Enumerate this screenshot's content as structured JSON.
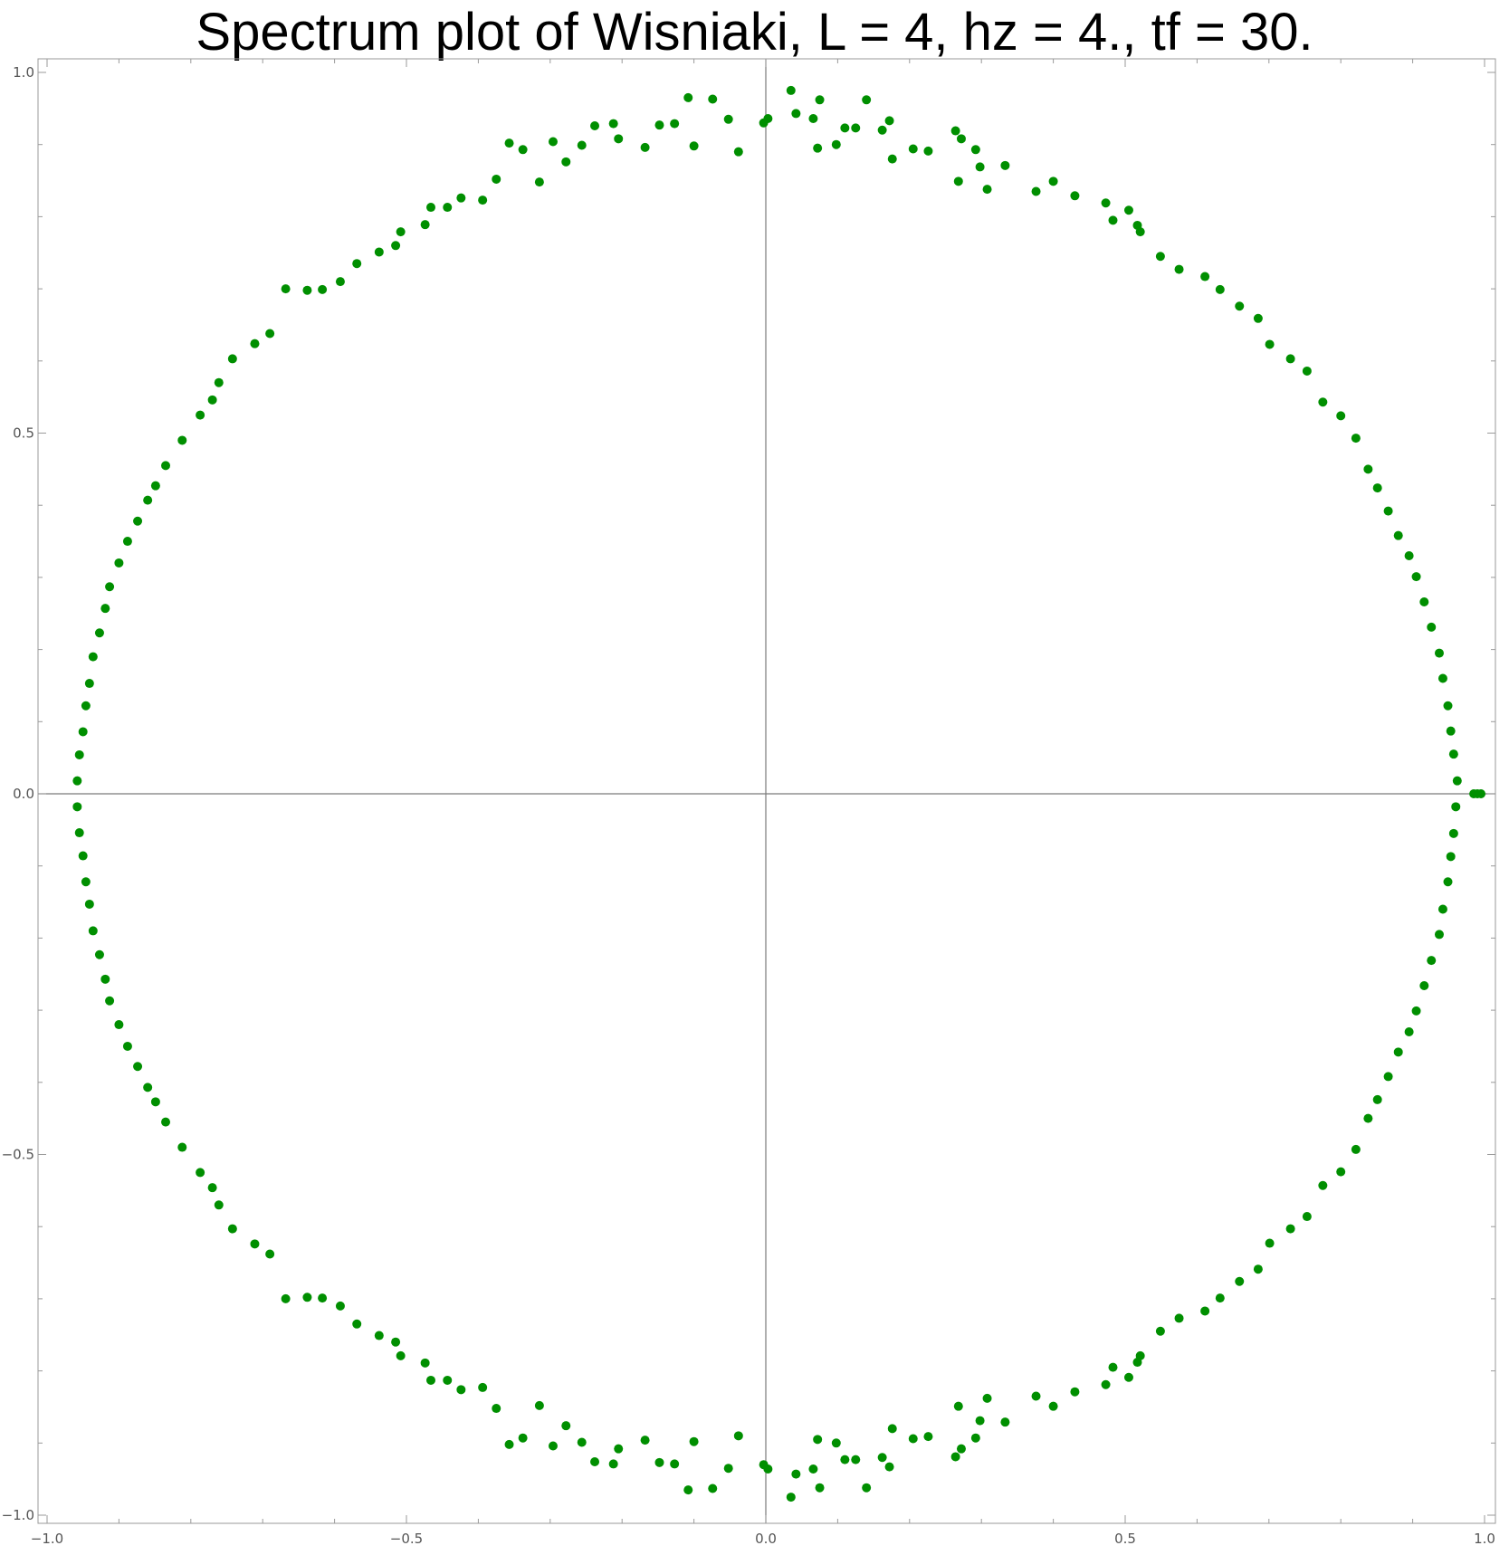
{
  "chart_data": {
    "type": "scatter",
    "title": "Spectrum plot of Wisniaki, L = 4, hz = 4., tf = 30.",
    "xlabel": "",
    "ylabel": "",
    "xlim": [
      -1.0,
      1.0
    ],
    "ylim": [
      -1.0,
      1.0
    ],
    "x_ticks": [
      "−1.0",
      "−0.5",
      "0.0",
      "0.5",
      "1.0"
    ],
    "y_ticks": [
      "−1.0",
      "−0.5",
      "0.0",
      "0.5",
      "1.0"
    ],
    "grid": false,
    "axes_through_origin": true,
    "marker_color": "#008f00",
    "series": [
      {
        "points": [
          [
            0.003,
            0.936
          ],
          [
            0.035,
            0.975
          ],
          [
            0.042,
            0.943
          ],
          [
            0.066,
            0.936
          ],
          [
            0.072,
            0.895
          ],
          [
            0.075,
            0.962
          ],
          [
            0.098,
            0.9
          ],
          [
            0.11,
            0.923
          ],
          [
            0.125,
            0.923
          ],
          [
            0.14,
            0.962
          ],
          [
            0.162,
            0.92
          ],
          [
            0.172,
            0.933
          ],
          [
            0.176,
            0.88
          ],
          [
            0.205,
            0.894
          ],
          [
            0.226,
            0.891
          ],
          [
            0.264,
            0.919
          ],
          [
            0.268,
            0.849
          ],
          [
            0.272,
            0.908
          ],
          [
            0.292,
            0.893
          ],
          [
            0.298,
            0.869
          ],
          [
            0.308,
            0.838
          ],
          [
            0.333,
            0.871
          ],
          [
            0.376,
            0.835
          ],
          [
            0.4,
            0.849
          ],
          [
            0.43,
            0.829
          ],
          [
            0.473,
            0.819
          ],
          [
            0.483,
            0.795
          ],
          [
            0.505,
            0.809
          ],
          [
            0.517,
            0.788
          ],
          [
            0.521,
            0.779
          ],
          [
            0.549,
            0.745
          ],
          [
            0.575,
            0.727
          ],
          [
            0.611,
            0.717
          ],
          [
            0.632,
            0.699
          ],
          [
            0.659,
            0.676
          ],
          [
            0.685,
            0.659
          ],
          [
            0.701,
            0.623
          ],
          [
            0.73,
            0.603
          ],
          [
            0.753,
            0.586
          ],
          [
            0.775,
            0.543
          ],
          [
            0.8,
            0.524
          ],
          [
            0.821,
            0.493
          ],
          [
            0.838,
            0.45
          ],
          [
            0.851,
            0.424
          ],
          [
            0.866,
            0.392
          ],
          [
            0.88,
            0.358
          ],
          [
            0.895,
            0.33
          ],
          [
            0.905,
            0.301
          ],
          [
            0.916,
            0.266
          ],
          [
            0.926,
            0.231
          ],
          [
            0.937,
            0.195
          ],
          [
            0.942,
            0.16
          ],
          [
            0.949,
            0.122
          ],
          [
            0.953,
            0.087
          ],
          [
            0.957,
            0.055
          ],
          [
            0.962,
            0.018
          ],
          [
            0.96,
            -0.018
          ],
          [
            0.957,
            -0.055
          ],
          [
            0.953,
            -0.087
          ],
          [
            0.949,
            -0.122
          ],
          [
            0.942,
            -0.16
          ],
          [
            0.937,
            -0.195
          ],
          [
            0.926,
            -0.231
          ],
          [
            0.916,
            -0.266
          ],
          [
            0.905,
            -0.301
          ],
          [
            0.895,
            -0.33
          ],
          [
            0.88,
            -0.358
          ],
          [
            0.866,
            -0.392
          ],
          [
            0.851,
            -0.424
          ],
          [
            0.838,
            -0.45
          ],
          [
            0.821,
            -0.493
          ],
          [
            0.8,
            -0.524
          ],
          [
            0.775,
            -0.543
          ],
          [
            0.753,
            -0.586
          ],
          [
            0.73,
            -0.603
          ],
          [
            0.701,
            -0.623
          ],
          [
            0.685,
            -0.659
          ],
          [
            0.659,
            -0.676
          ],
          [
            0.632,
            -0.699
          ],
          [
            0.611,
            -0.717
          ],
          [
            0.575,
            -0.727
          ],
          [
            0.549,
            -0.745
          ],
          [
            0.521,
            -0.779
          ],
          [
            0.517,
            -0.788
          ],
          [
            0.505,
            -0.809
          ],
          [
            0.483,
            -0.795
          ],
          [
            0.473,
            -0.819
          ],
          [
            0.43,
            -0.829
          ],
          [
            0.4,
            -0.849
          ],
          [
            0.376,
            -0.835
          ],
          [
            0.333,
            -0.871
          ],
          [
            0.308,
            -0.838
          ],
          [
            0.298,
            -0.869
          ],
          [
            0.292,
            -0.893
          ],
          [
            0.272,
            -0.908
          ],
          [
            0.268,
            -0.849
          ],
          [
            0.264,
            -0.919
          ],
          [
            0.226,
            -0.891
          ],
          [
            0.205,
            -0.894
          ],
          [
            0.176,
            -0.88
          ],
          [
            0.172,
            -0.933
          ],
          [
            0.162,
            -0.92
          ],
          [
            0.14,
            -0.962
          ],
          [
            0.125,
            -0.923
          ],
          [
            0.11,
            -0.923
          ],
          [
            0.098,
            -0.9
          ],
          [
            0.075,
            -0.962
          ],
          [
            0.072,
            -0.895
          ],
          [
            0.066,
            -0.936
          ],
          [
            0.042,
            -0.943
          ],
          [
            0.035,
            -0.975
          ],
          [
            0.003,
            -0.936
          ],
          [
            -0.038,
            0.89
          ],
          [
            -0.052,
            0.935
          ],
          [
            -0.074,
            0.963
          ],
          [
            -0.1,
            0.898
          ],
          [
            -0.108,
            0.965
          ],
          [
            -0.127,
            0.929
          ],
          [
            -0.148,
            0.927
          ],
          [
            -0.168,
            0.896
          ],
          [
            -0.205,
            0.908
          ],
          [
            -0.212,
            0.929
          ],
          [
            -0.238,
            0.926
          ],
          [
            -0.256,
            0.899
          ],
          [
            -0.278,
            0.876
          ],
          [
            -0.296,
            0.904
          ],
          [
            -0.315,
            0.848
          ],
          [
            -0.338,
            0.893
          ],
          [
            -0.357,
            0.902
          ],
          [
            -0.375,
            0.852
          ],
          [
            -0.394,
            0.823
          ],
          [
            -0.424,
            0.826
          ],
          [
            -0.443,
            0.813
          ],
          [
            -0.466,
            0.813
          ],
          [
            -0.474,
            0.789
          ],
          [
            -0.508,
            0.779
          ],
          [
            -0.515,
            0.76
          ],
          [
            -0.538,
            0.751
          ],
          [
            -0.569,
            0.735
          ],
          [
            -0.592,
            0.71
          ],
          [
            -0.617,
            0.699
          ],
          [
            -0.638,
            0.698
          ],
          [
            -0.668,
            0.7
          ],
          [
            -0.69,
            0.638
          ],
          [
            -0.711,
            0.624
          ],
          [
            -0.742,
            0.603
          ],
          [
            -0.761,
            0.57
          ],
          [
            -0.77,
            0.546
          ],
          [
            -0.787,
            0.525
          ],
          [
            -0.812,
            0.49
          ],
          [
            -0.835,
            0.455
          ],
          [
            -0.849,
            0.427
          ],
          [
            -0.86,
            0.407
          ],
          [
            -0.874,
            0.378
          ],
          [
            -0.888,
            0.35
          ],
          [
            -0.9,
            0.32
          ],
          [
            -0.913,
            0.287
          ],
          [
            -0.919,
            0.257
          ],
          [
            -0.927,
            0.223
          ],
          [
            -0.936,
            0.19
          ],
          [
            -0.941,
            0.153
          ],
          [
            -0.946,
            0.122
          ],
          [
            -0.95,
            0.086
          ],
          [
            -0.955,
            0.054
          ],
          [
            -0.958,
            0.018
          ],
          [
            -0.958,
            -0.018
          ],
          [
            -0.955,
            -0.054
          ],
          [
            -0.95,
            -0.086
          ],
          [
            -0.946,
            -0.122
          ],
          [
            -0.941,
            -0.153
          ],
          [
            -0.936,
            -0.19
          ],
          [
            -0.927,
            -0.223
          ],
          [
            -0.919,
            -0.257
          ],
          [
            -0.913,
            -0.287
          ],
          [
            -0.9,
            -0.32
          ],
          [
            -0.888,
            -0.35
          ],
          [
            -0.874,
            -0.378
          ],
          [
            -0.86,
            -0.407
          ],
          [
            -0.849,
            -0.427
          ],
          [
            -0.835,
            -0.455
          ],
          [
            -0.812,
            -0.49
          ],
          [
            -0.787,
            -0.525
          ],
          [
            -0.77,
            -0.546
          ],
          [
            -0.761,
            -0.57
          ],
          [
            -0.742,
            -0.603
          ],
          [
            -0.711,
            -0.624
          ],
          [
            -0.69,
            -0.638
          ],
          [
            -0.668,
            -0.7
          ],
          [
            -0.638,
            -0.698
          ],
          [
            -0.617,
            -0.699
          ],
          [
            -0.592,
            -0.71
          ],
          [
            -0.569,
            -0.735
          ],
          [
            -0.538,
            -0.751
          ],
          [
            -0.515,
            -0.76
          ],
          [
            -0.508,
            -0.779
          ],
          [
            -0.474,
            -0.789
          ],
          [
            -0.466,
            -0.813
          ],
          [
            -0.443,
            -0.813
          ],
          [
            -0.424,
            -0.826
          ],
          [
            -0.394,
            -0.823
          ],
          [
            -0.375,
            -0.852
          ],
          [
            -0.357,
            -0.902
          ],
          [
            -0.338,
            -0.893
          ],
          [
            -0.315,
            -0.848
          ],
          [
            -0.296,
            -0.904
          ],
          [
            -0.278,
            -0.876
          ],
          [
            -0.256,
            -0.899
          ],
          [
            -0.238,
            -0.926
          ],
          [
            -0.212,
            -0.929
          ],
          [
            -0.205,
            -0.908
          ],
          [
            -0.168,
            -0.896
          ],
          [
            -0.148,
            -0.927
          ],
          [
            -0.127,
            -0.929
          ],
          [
            -0.108,
            -0.965
          ],
          [
            -0.1,
            -0.898
          ],
          [
            -0.074,
            -0.963
          ],
          [
            -0.052,
            -0.935
          ],
          [
            -0.038,
            -0.89
          ],
          [
            -0.003,
            0.93
          ],
          [
            -0.003,
            -0.93
          ],
          [
            0.985,
            0.0
          ],
          [
            0.99,
            0.0
          ],
          [
            0.995,
            0.0
          ]
        ]
      }
    ]
  }
}
